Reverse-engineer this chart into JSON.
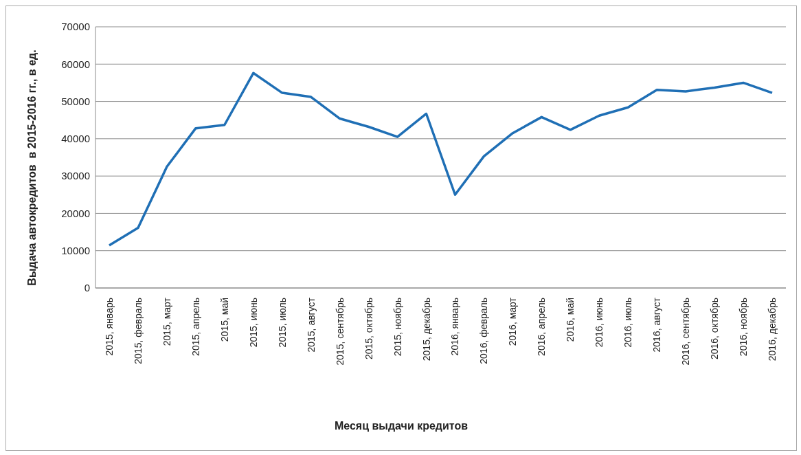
{
  "chart_data": {
    "type": "line",
    "xlabel": "Месяц выдачи кредитов",
    "ylabel": "Выдача автокредитов  в 2015-2016 гг., в ед.",
    "categories": [
      "2015, январь",
      "2015, февраль",
      "2015, март",
      "2015, апрель",
      "2015, май",
      "2015, июнь",
      "2015, июль",
      "2015, август",
      "2015, сентябрь",
      "2015, октябрь",
      "2015, ноябрь",
      "2015, декабрь",
      "2016, январь",
      "2016, февраль",
      "2016, март",
      "2016, апрель",
      "2016, май",
      "2016, июнь",
      "2016, июль",
      "2016, август",
      "2016, сентябрь",
      "2016, октябрь",
      "2016, ноябрь",
      "2016, декабрь"
    ],
    "series": [
      {
        "color": "#1f6fb5",
        "values": [
          11400,
          16100,
          32500,
          42800,
          43700,
          57600,
          52300,
          51200,
          45400,
          43200,
          40500,
          46700,
          25000,
          35300,
          41500,
          45800,
          42400,
          46200,
          48400,
          53100,
          52700,
          53700,
          55000,
          52300
        ]
      }
    ],
    "ylim": [
      0,
      70000
    ],
    "yticks": [
      0,
      10000,
      20000,
      30000,
      40000,
      50000,
      60000,
      70000
    ],
    "grid": "y",
    "legend": false,
    "marker": "none",
    "line_style": "solid"
  }
}
